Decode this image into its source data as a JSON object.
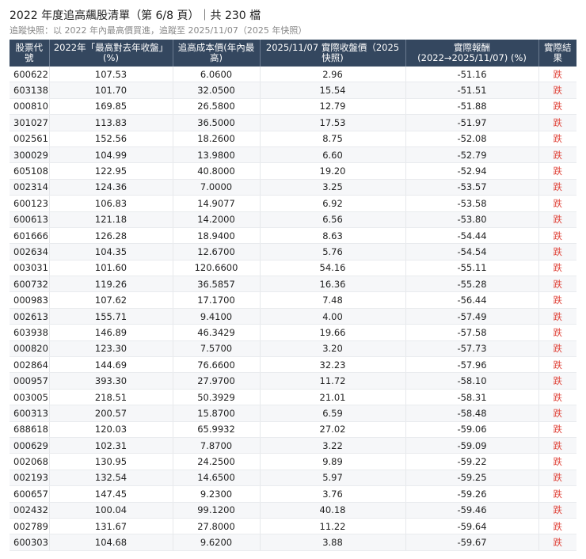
{
  "title": "2022 年度追高飆股清單（第 6/8 頁）｜共 230 檔",
  "subtitle": "追蹤快照：以 2022 年內最高價買進，追蹤至 2025/11/07（2025 年快照）",
  "colors": {
    "header_bg": "#34475f",
    "fall": "#e0463c"
  },
  "columns": [
    "股票代號",
    "2022年「最高對去年收盤」(%)",
    "追高成本價(年內最高)",
    "2025/11/07 實際收盤價（2025 快照)",
    "實際報酬 (2022→2025/11/07) (%)",
    "實際結果"
  ],
  "rows": [
    [
      "600622",
      "107.53",
      "6.0600",
      "2.96",
      "-51.16",
      "跌"
    ],
    [
      "603138",
      "101.70",
      "32.0500",
      "15.54",
      "-51.51",
      "跌"
    ],
    [
      "000810",
      "169.85",
      "26.5800",
      "12.79",
      "-51.88",
      "跌"
    ],
    [
      "301027",
      "113.83",
      "36.5000",
      "17.53",
      "-51.97",
      "跌"
    ],
    [
      "002561",
      "152.56",
      "18.2600",
      "8.75",
      "-52.08",
      "跌"
    ],
    [
      "300029",
      "104.99",
      "13.9800",
      "6.60",
      "-52.79",
      "跌"
    ],
    [
      "605108",
      "122.95",
      "40.8000",
      "19.20",
      "-52.94",
      "跌"
    ],
    [
      "002314",
      "124.36",
      "7.0000",
      "3.25",
      "-53.57",
      "跌"
    ],
    [
      "600123",
      "106.83",
      "14.9077",
      "6.92",
      "-53.58",
      "跌"
    ],
    [
      "600613",
      "121.18",
      "14.2000",
      "6.56",
      "-53.80",
      "跌"
    ],
    [
      "601666",
      "126.28",
      "18.9400",
      "8.63",
      "-54.44",
      "跌"
    ],
    [
      "002634",
      "104.35",
      "12.6700",
      "5.76",
      "-54.54",
      "跌"
    ],
    [
      "003031",
      "101.60",
      "120.6600",
      "54.16",
      "-55.11",
      "跌"
    ],
    [
      "600732",
      "119.26",
      "36.5857",
      "16.36",
      "-55.28",
      "跌"
    ],
    [
      "000983",
      "107.62",
      "17.1700",
      "7.48",
      "-56.44",
      "跌"
    ],
    [
      "002613",
      "155.71",
      "9.4100",
      "4.00",
      "-57.49",
      "跌"
    ],
    [
      "603938",
      "146.89",
      "46.3429",
      "19.66",
      "-57.58",
      "跌"
    ],
    [
      "000820",
      "123.30",
      "7.5700",
      "3.20",
      "-57.73",
      "跌"
    ],
    [
      "002864",
      "144.69",
      "76.6600",
      "32.23",
      "-57.96",
      "跌"
    ],
    [
      "000957",
      "393.30",
      "27.9700",
      "11.72",
      "-58.10",
      "跌"
    ],
    [
      "003005",
      "218.51",
      "50.3929",
      "21.01",
      "-58.31",
      "跌"
    ],
    [
      "600313",
      "200.57",
      "15.8700",
      "6.59",
      "-58.48",
      "跌"
    ],
    [
      "688618",
      "120.03",
      "65.9932",
      "27.02",
      "-59.06",
      "跌"
    ],
    [
      "000629",
      "102.31",
      "7.8700",
      "3.22",
      "-59.09",
      "跌"
    ],
    [
      "002068",
      "130.95",
      "24.2500",
      "9.89",
      "-59.22",
      "跌"
    ],
    [
      "002193",
      "132.54",
      "14.6500",
      "5.97",
      "-59.25",
      "跌"
    ],
    [
      "600657",
      "147.45",
      "9.2300",
      "3.76",
      "-59.26",
      "跌"
    ],
    [
      "002432",
      "100.04",
      "99.1200",
      "40.18",
      "-59.46",
      "跌"
    ],
    [
      "002789",
      "131.67",
      "27.8000",
      "11.22",
      "-59.64",
      "跌"
    ],
    [
      "600303",
      "104.68",
      "9.6200",
      "3.88",
      "-59.67",
      "跌"
    ]
  ]
}
